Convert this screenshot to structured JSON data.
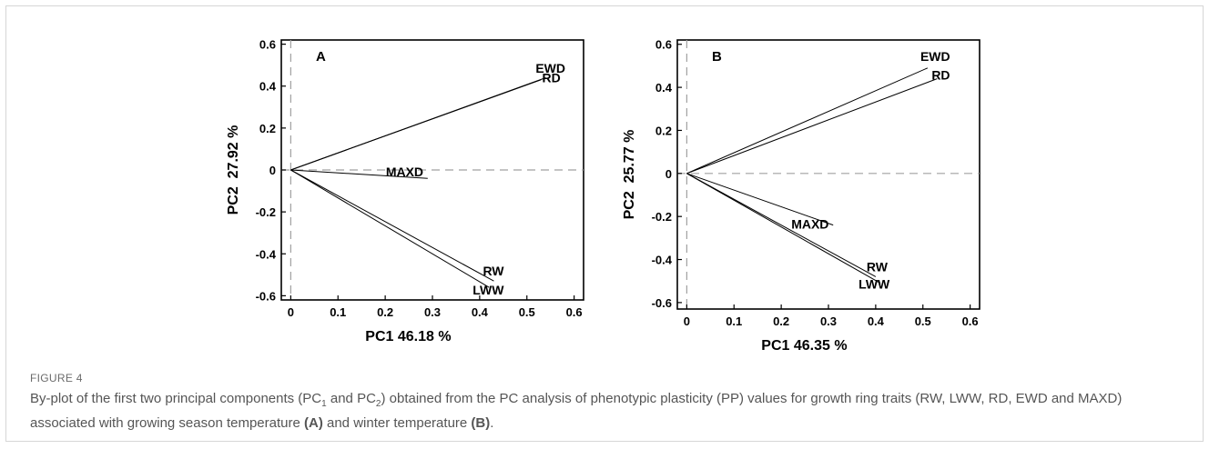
{
  "figure": {
    "label": "FIGURE 4",
    "caption_parts": [
      "By-plot of the first two principal components (PC",
      "1",
      " and PC",
      "2",
      ") obtained from the PC analysis of phenotypic plasticity (PP) values for growth ring traits (RW, LWW, RD, EWD and MAXD) associated with growing season temperature ",
      "(A)",
      " and winter temperature ",
      "(B)",
      "."
    ]
  },
  "colors": {
    "line": "#000000",
    "dashed": "#a0a0a0",
    "caption": "#555555"
  },
  "chart_data": [
    {
      "type": "scatter",
      "panel_label": "A",
      "xlabel": "PC1 46.18 %",
      "ylabel": "PC2  27.92 %",
      "xlim": [
        -0.02,
        0.62
      ],
      "ylim": [
        -0.62,
        0.62
      ],
      "xticks": [
        "0",
        "0.1",
        "0.2",
        "0.3",
        "0.4",
        "0.5",
        "0.6"
      ],
      "yticks": [
        "0.6",
        "0.4",
        "0.2",
        "0",
        "-0.2",
        "-0.4",
        "-0.6"
      ],
      "reference_lines": {
        "x": 0,
        "y": 0,
        "style": "dashed"
      },
      "vectors": [
        {
          "label": "EWD",
          "x": 0.53,
          "y": 0.43
        },
        {
          "label": "RD",
          "x": 0.54,
          "y": 0.44
        },
        {
          "label": "MAXD",
          "x": 0.29,
          "y": -0.04
        },
        {
          "label": "RW",
          "x": 0.43,
          "y": -0.53
        },
        {
          "label": "LWW",
          "x": 0.42,
          "y": -0.56
        }
      ],
      "grid": false
    },
    {
      "type": "scatter",
      "panel_label": "B",
      "xlabel": "PC1 46.35 %",
      "ylabel": "PC2  25.77 %",
      "xlim": [
        -0.02,
        0.62
      ],
      "ylim": [
        -0.63,
        0.62
      ],
      "xticks": [
        "0",
        "0.1",
        "0.2",
        "0.3",
        "0.4",
        "0.5",
        "0.6"
      ],
      "yticks": [
        "0.6",
        "0.4",
        "0.2",
        "0",
        "-0.2",
        "-0.4",
        "-0.6"
      ],
      "reference_lines": {
        "x": 0,
        "y": 0,
        "style": "dashed"
      },
      "vectors": [
        {
          "label": "EWD",
          "x": 0.51,
          "y": 0.49
        },
        {
          "label": "RD",
          "x": 0.53,
          "y": 0.44
        },
        {
          "label": "MAXD",
          "x": 0.31,
          "y": -0.24
        },
        {
          "label": "RW",
          "x": 0.4,
          "y": -0.48
        },
        {
          "label": "LWW",
          "x": 0.41,
          "y": -0.51
        }
      ],
      "grid": false
    }
  ]
}
